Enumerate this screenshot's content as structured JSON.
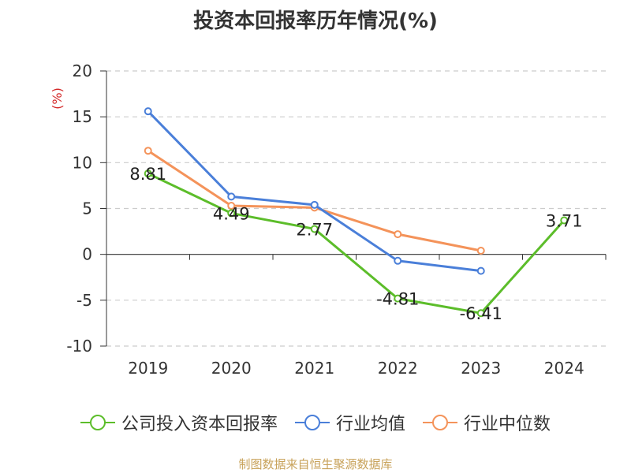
{
  "title": "投资本回报率历年情况(%)",
  "source": "制图数据来自恒生聚源数据库",
  "chart_data": {
    "type": "line",
    "title": "投资本回报率历年情况(%)",
    "ylabel": "(%)",
    "xlabel": "",
    "categories": [
      "2019",
      "2020",
      "2021",
      "2022",
      "2023",
      "2024"
    ],
    "ylim": [
      -10,
      20
    ],
    "yticks": [
      20,
      15,
      10,
      5,
      0,
      -5,
      -10
    ],
    "grid": true,
    "legend_position": "bottom",
    "series": [
      {
        "name": "公司投入资本回报率",
        "color": "#5cbd2a",
        "values": [
          8.81,
          4.49,
          2.77,
          -4.81,
          -6.41,
          3.71
        ],
        "labels": [
          "8.81",
          "4.49",
          "2.77",
          "-4.81",
          "-6.41",
          "3.71"
        ]
      },
      {
        "name": "行业均值",
        "color": "#4a7fd9",
        "values": [
          15.6,
          6.3,
          5.4,
          -0.7,
          -1.8,
          null
        ]
      },
      {
        "name": "行业中位数",
        "color": "#f4935a",
        "values": [
          11.3,
          5.3,
          5.1,
          2.2,
          0.4,
          null
        ]
      }
    ]
  }
}
